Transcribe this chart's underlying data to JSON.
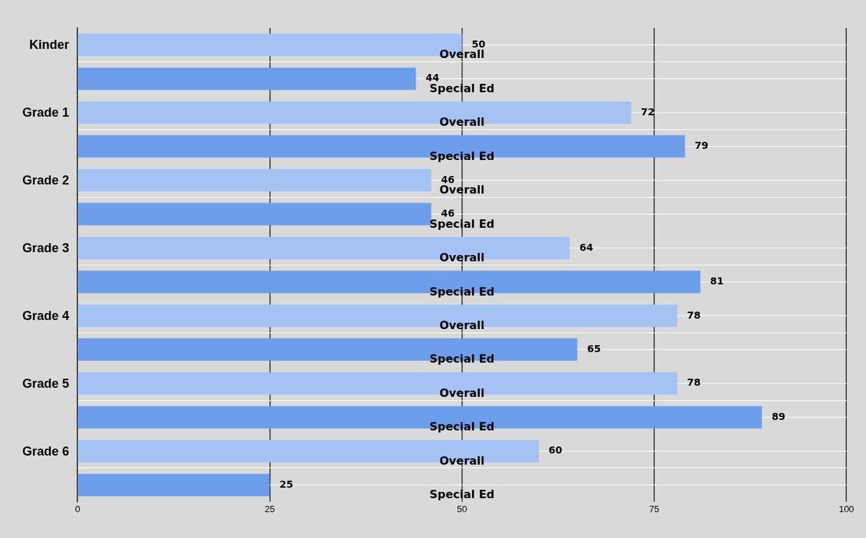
{
  "chart_data": {
    "type": "bar",
    "orientation": "horizontal",
    "categories": [
      "Kinder",
      "Grade 1",
      "Grade 2",
      "Grade 3",
      "Grade 4",
      "Grade 5",
      "Grade 6"
    ],
    "series": [
      {
        "name": "Overall",
        "color": "#a4c2f4",
        "values": [
          50,
          72,
          46,
          64,
          78,
          78,
          60
        ]
      },
      {
        "name": "Special Ed",
        "color": "#6d9eeb",
        "values": [
          44,
          79,
          46,
          81,
          65,
          89,
          25
        ]
      }
    ],
    "xlim": [
      0,
      100
    ],
    "xticks": [
      0,
      25,
      50,
      75,
      100
    ],
    "grid": true,
    "legend": false,
    "data_labels": true
  }
}
